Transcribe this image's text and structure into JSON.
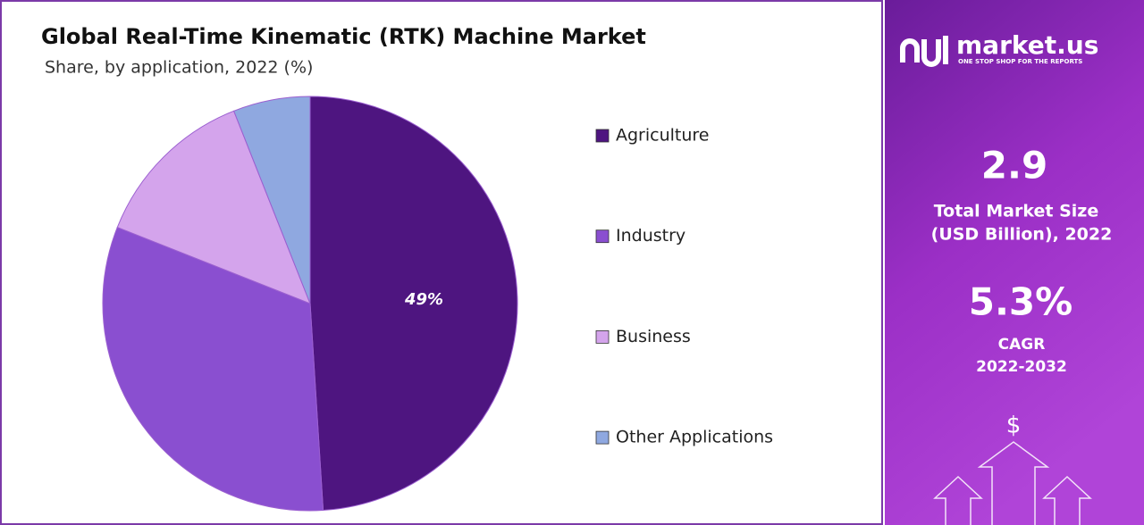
{
  "chart_data": {
    "type": "pie",
    "title": "Global Real-Time Kinematic (RTK) Machine Market",
    "subtitle": "Share, by application, 2022 (%)",
    "categories": [
      "Agriculture",
      "Industry",
      "Business",
      "Other Applications"
    ],
    "values": [
      49,
      32,
      13,
      6
    ],
    "value_labels": [
      "49%",
      null,
      null,
      null
    ],
    "colors": [
      "#4e1580",
      "#8a4fd0",
      "#d4a4ec",
      "#8fa8e0"
    ],
    "legend": "right"
  },
  "panel": {
    "brand": "market.us",
    "tagline": "ONE STOP SHOP FOR THE REPORTS",
    "market_size": "2.9",
    "market_size_label": [
      "Total Market Size",
      "(USD Billion), 2022"
    ],
    "cagr": "5.3%",
    "cagr_label": [
      "CAGR",
      "2022-2032"
    ]
  }
}
